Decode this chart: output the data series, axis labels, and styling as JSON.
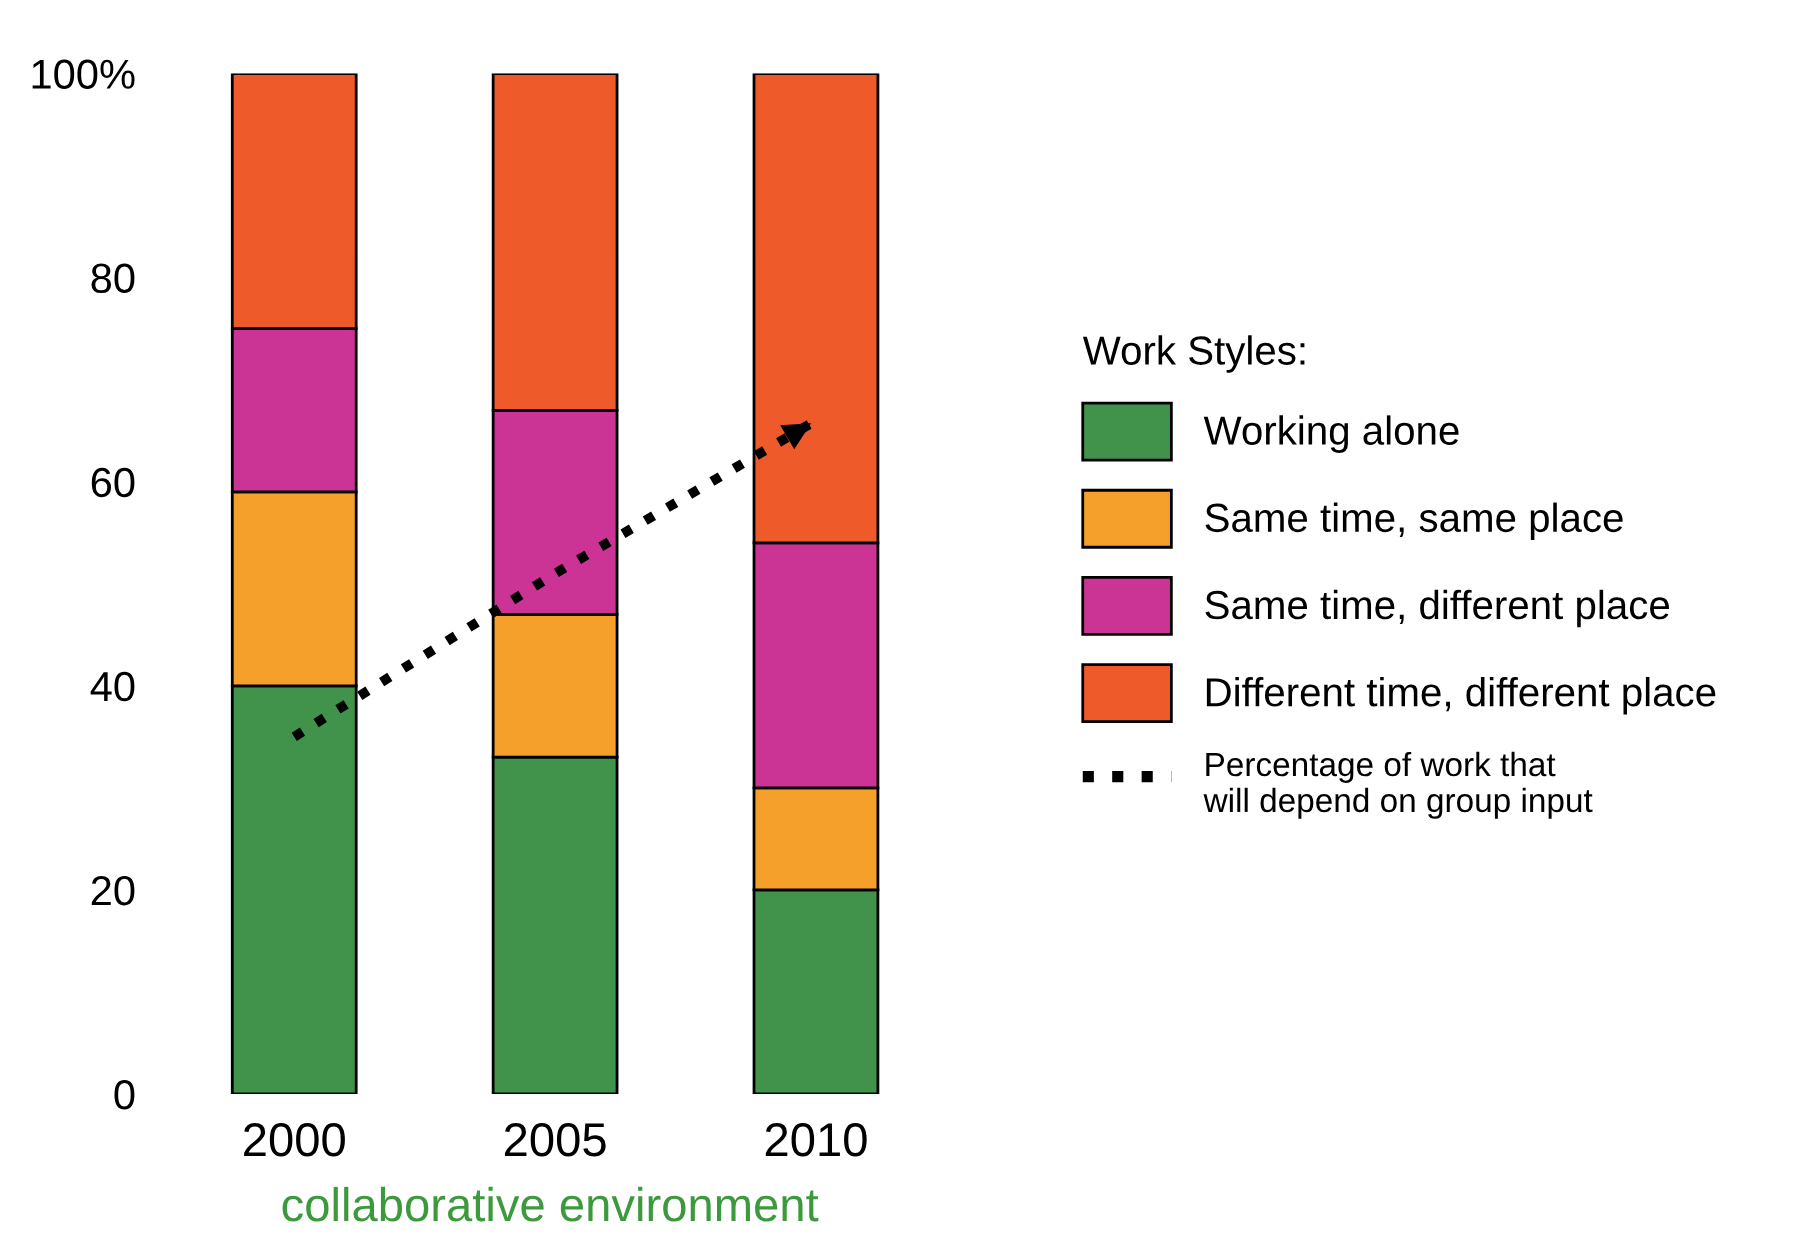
{
  "chart_data": {
    "type": "bar",
    "stacked": true,
    "legend_title": "Work Styles:",
    "legend": "right",
    "categories": [
      "2000",
      "2005",
      "2010"
    ],
    "series": [
      {
        "name": "Working alone",
        "color": "#41924a",
        "values": [
          40,
          33,
          20
        ]
      },
      {
        "name": "Same time, same place",
        "color": "#f5a02b",
        "values": [
          19,
          14,
          10
        ]
      },
      {
        "name": "Same time, different place",
        "color": "#cb3495",
        "values": [
          16,
          20,
          24
        ]
      },
      {
        "name": "Different time, different place",
        "color": "#ef5a2a",
        "values": [
          25,
          33,
          46
        ]
      },
      {
        "name": "Percentage of work that\nwill depend on group input",
        "type": "line",
        "color": "#000000",
        "line_style": "dotted",
        "values": [
          35,
          51,
          66
        ]
      }
    ],
    "ylim": [
      0,
      100
    ],
    "yticks": [
      0,
      20,
      40,
      60,
      80,
      {
        "value": 100,
        "label": "100%"
      }
    ],
    "grid": false,
    "annotations": [
      "collaborative environment"
    ]
  }
}
